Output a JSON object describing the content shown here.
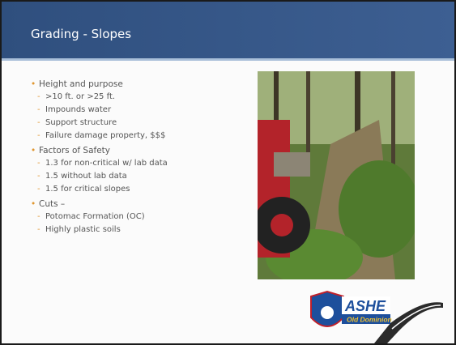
{
  "header": {
    "title": "Grading - Slopes"
  },
  "bullets": [
    {
      "text": "Height and purpose",
      "items": [
        ">10 ft. or >25 ft.",
        "Impounds water",
        "Support structure",
        "Failure damage property, $$$"
      ]
    },
    {
      "text": "Factors of Safety",
      "items": [
        "1.3 for non-critical w/ lab data",
        "1.5 without lab data",
        "1.5 for critical slopes"
      ]
    },
    {
      "text": "Cuts –",
      "items": [
        "Potomac Formation (OC)",
        "Highly plastic soils"
      ]
    }
  ],
  "logo": {
    "name": "ASHE",
    "subtitle": "Old Dominion"
  }
}
